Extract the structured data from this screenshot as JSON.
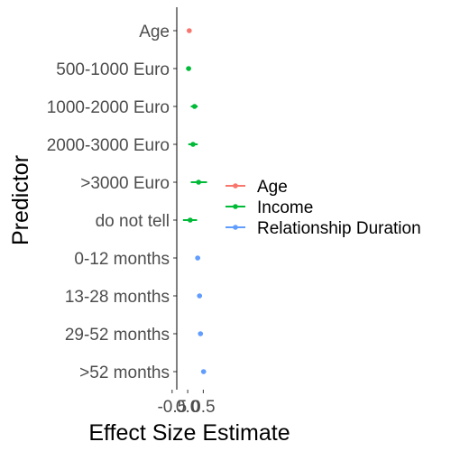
{
  "chart_data": {
    "type": "scatter",
    "subtype": "point-range",
    "xlabel": "Effect Size Estimate",
    "ylabel": "Predictor",
    "xlim": [
      -0.35,
      0.75
    ],
    "x_ticks": [
      -0.5,
      0.0,
      0.5
    ],
    "x_tick_labels": [
      "-0.5",
      "0.0",
      "0.5"
    ],
    "grid": false,
    "legend_position": "right",
    "colors": {
      "Age": "#F8766D",
      "Income": "#00BA38",
      "Relationship Duration": "#619CFF"
    },
    "categories": [
      "Age",
      "500-1000 Euro",
      "1000-2000 Euro",
      "2000-3000 Euro",
      ">3000 Euro",
      "do not tell",
      "0-12 months",
      "13-28 months",
      "29-52 months",
      ">52 months"
    ],
    "series": [
      {
        "name": "Age",
        "points": [
          {
            "category": "Age",
            "estimate": 0.05,
            "low": 0.0,
            "high": 0.1
          }
        ]
      },
      {
        "name": "Income",
        "points": [
          {
            "category": "500-1000 Euro",
            "estimate": 0.03,
            "low": -0.05,
            "high": 0.1
          },
          {
            "category": "1000-2000 Euro",
            "estimate": 0.22,
            "low": 0.1,
            "high": 0.32
          },
          {
            "category": "2000-3000 Euro",
            "estimate": 0.17,
            "low": 0.02,
            "high": 0.32
          },
          {
            "category": ">3000 Euro",
            "estimate": 0.35,
            "low": 0.1,
            "high": 0.62
          },
          {
            "category": "do not tell",
            "estimate": 0.08,
            "low": -0.15,
            "high": 0.3
          }
        ]
      },
      {
        "name": "Relationship Duration",
        "points": [
          {
            "category": "0-12 months",
            "estimate": 0.32,
            "low": 0.25,
            "high": 0.4
          },
          {
            "category": "13-28 months",
            "estimate": 0.38,
            "low": 0.3,
            "high": 0.46
          },
          {
            "category": "29-52 months",
            "estimate": 0.41,
            "low": 0.33,
            "high": 0.49
          },
          {
            "category": ">52 months",
            "estimate": 0.51,
            "low": 0.43,
            "high": 0.59
          }
        ]
      }
    ]
  }
}
